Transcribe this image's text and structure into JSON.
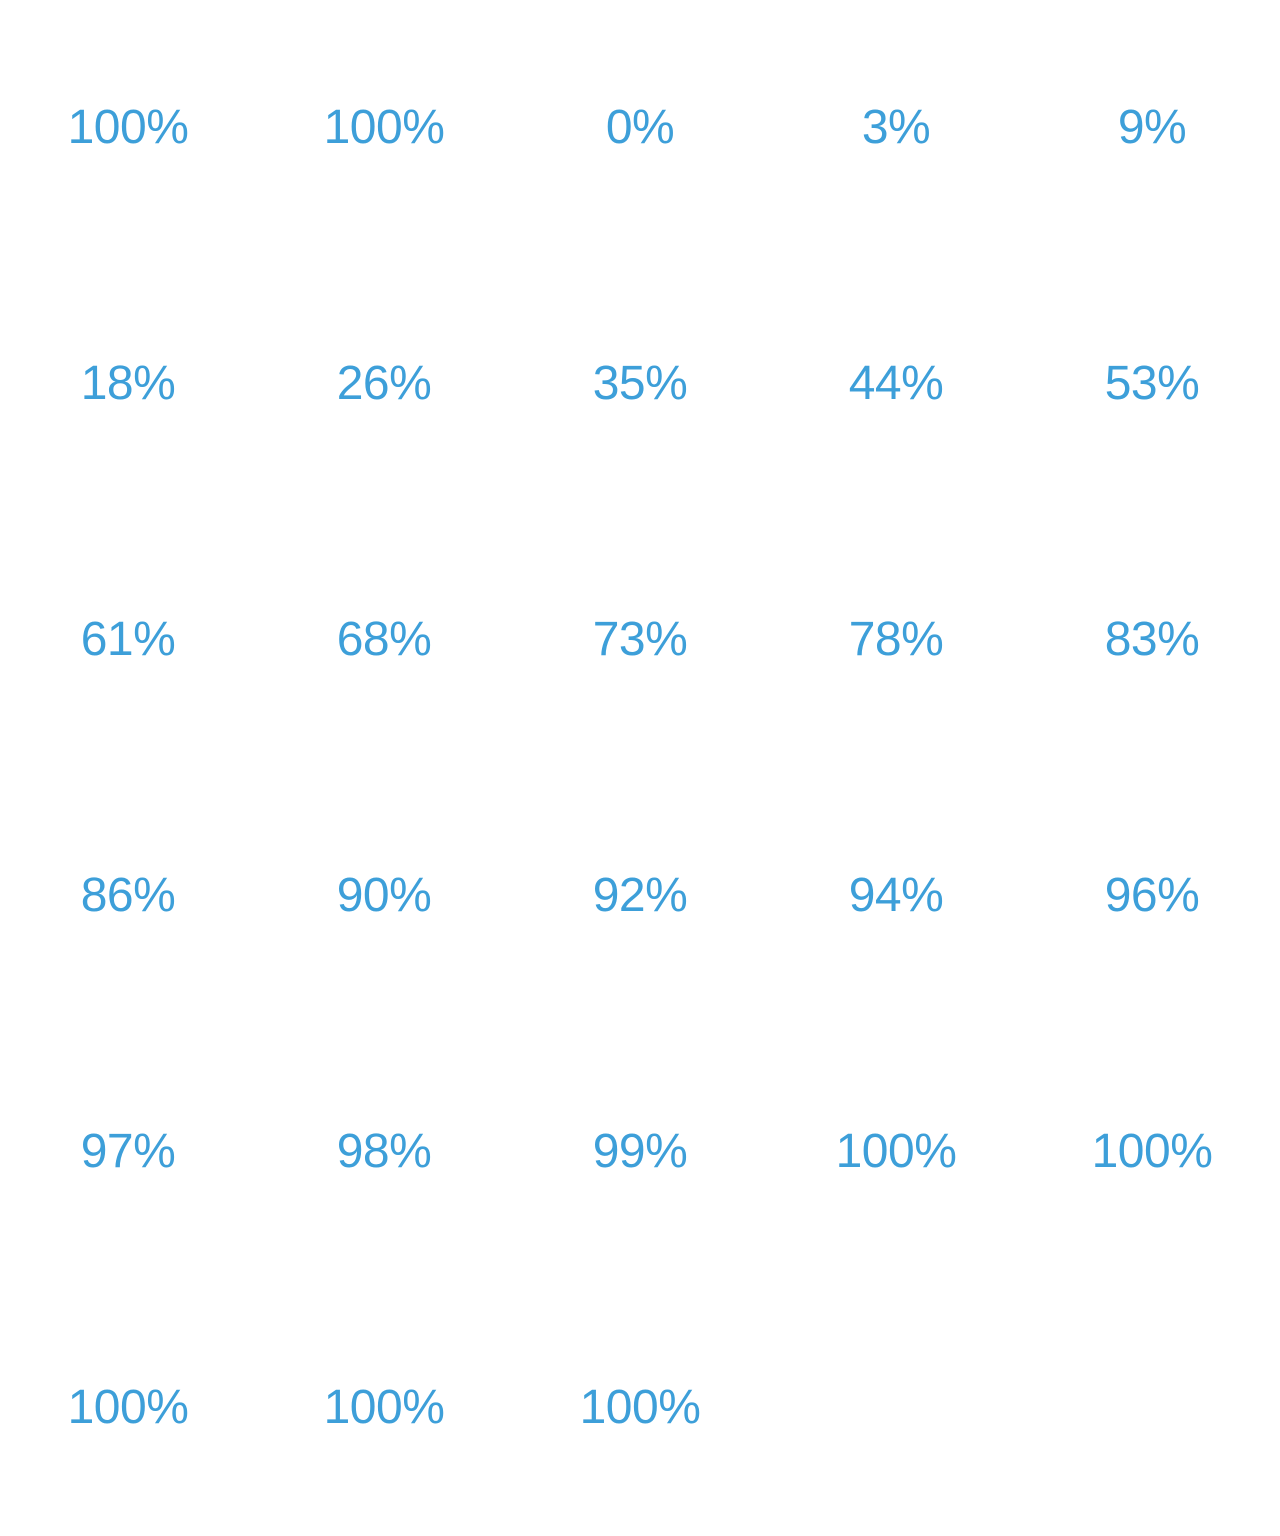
{
  "colors": {
    "text": "#3d9fd9",
    "background": "#ffffff"
  },
  "percentages": [
    "100%",
    "100%",
    "0%",
    "3%",
    "9%",
    "18%",
    "26%",
    "35%",
    "44%",
    "53%",
    "61%",
    "68%",
    "73%",
    "78%",
    "83%",
    "86%",
    "90%",
    "92%",
    "94%",
    "96%",
    "97%",
    "98%",
    "99%",
    "100%",
    "100%",
    "100%",
    "100%",
    "100%"
  ]
}
